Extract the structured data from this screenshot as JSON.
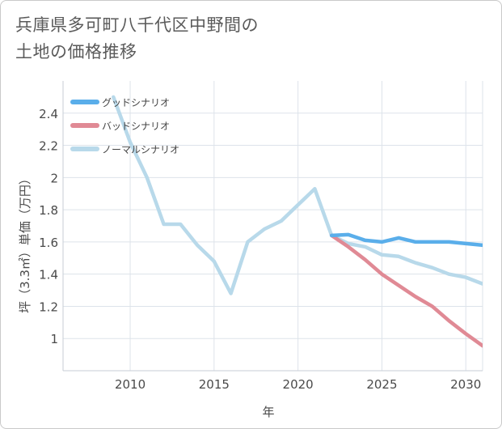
{
  "chart_data": {
    "type": "line",
    "title_line1": "兵庫県多可町八千代区中野間の",
    "title_line2": "土地の価格推移",
    "xlabel": "年",
    "ylabel": "坪（3.3㎡）単価（万円）",
    "xlim": [
      2006,
      2031
    ],
    "ylim": [
      0.8,
      2.6
    ],
    "x_ticks": [
      2010,
      2015,
      2020,
      2025,
      2030
    ],
    "y_ticks": [
      1,
      1.2,
      1.4,
      1.6,
      1.8,
      2,
      2.2,
      2.4
    ],
    "legend": [
      {
        "name": "グッドシナリオ",
        "color": "#5aaeea"
      },
      {
        "name": "バッドシナリオ",
        "color": "#e08a95"
      },
      {
        "name": "ノーマルシナリオ",
        "color": "#b8d9ea"
      }
    ],
    "series": [
      {
        "name": "グッドシナリオ",
        "color": "#5aaeea",
        "x": [
          2022,
          2023,
          2024,
          2025,
          2026,
          2027,
          2028,
          2029,
          2030,
          2031
        ],
        "y": [
          1.64,
          1.645,
          1.61,
          1.6,
          1.625,
          1.6,
          1.6,
          1.6,
          1.59,
          1.58
        ]
      },
      {
        "name": "バッドシナリオ",
        "color": "#e08a95",
        "x": [
          2022,
          2023,
          2024,
          2025,
          2026,
          2027,
          2028,
          2029,
          2030,
          2031
        ],
        "y": [
          1.64,
          1.57,
          1.49,
          1.4,
          1.33,
          1.26,
          1.2,
          1.11,
          1.03,
          0.955
        ]
      },
      {
        "name": "ノーマルシナリオ",
        "color": "#b8d9ea",
        "x": [
          2009,
          2010,
          2011,
          2012,
          2013,
          2014,
          2015,
          2016,
          2017,
          2018,
          2019,
          2020,
          2021,
          2022,
          2023,
          2024,
          2025,
          2026,
          2027,
          2028,
          2029,
          2030,
          2031
        ],
        "y": [
          2.5,
          2.22,
          2.0,
          1.71,
          1.71,
          1.58,
          1.48,
          1.28,
          1.6,
          1.68,
          1.73,
          1.83,
          1.93,
          1.64,
          1.59,
          1.57,
          1.52,
          1.51,
          1.47,
          1.44,
          1.4,
          1.38,
          1.34
        ]
      }
    ]
  }
}
